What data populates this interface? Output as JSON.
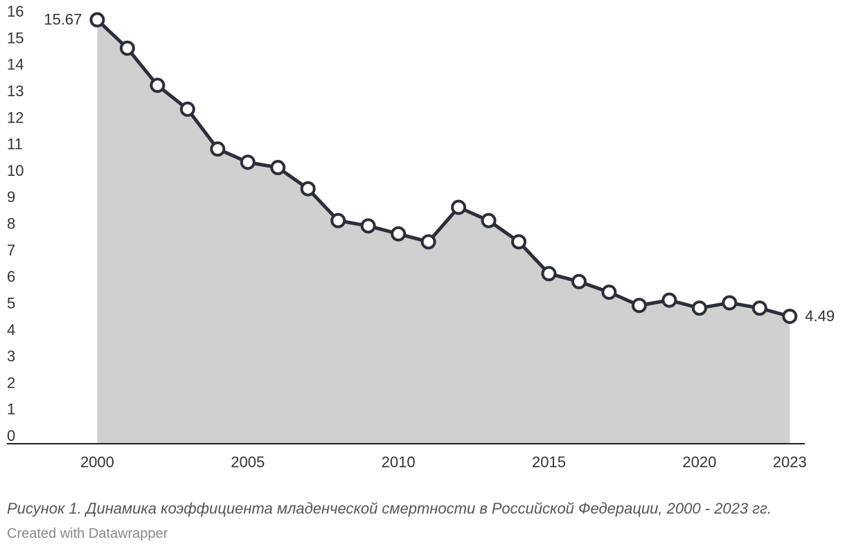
{
  "chart_data": {
    "type": "area",
    "title": "",
    "xlabel": "",
    "ylabel": "",
    "ylim": [
      0,
      16
    ],
    "xlim": [
      1997,
      2023.5
    ],
    "y_ticks": [
      0,
      1,
      2,
      3,
      4,
      5,
      6,
      7,
      8,
      9,
      10,
      11,
      12,
      13,
      14,
      15,
      16
    ],
    "x_ticks": [
      2000,
      2005,
      2010,
      2015,
      2020,
      2023
    ],
    "grid": false,
    "legend": "none",
    "colors": {
      "line": "#2b2f3a",
      "area": "#d0d0d0",
      "marker_fill": "#ffffff"
    },
    "series": [
      {
        "x": [
          2000,
          2001,
          2002,
          2003,
          2004,
          2005,
          2006,
          2007,
          2008,
          2009,
          2010,
          2011,
          2012,
          2013,
          2014,
          2015,
          2016,
          2017,
          2018,
          2019,
          2020,
          2021,
          2022,
          2023
        ],
        "values": [
          15.67,
          14.6,
          13.2,
          12.3,
          10.8,
          10.3,
          10.1,
          9.3,
          8.1,
          7.9,
          7.6,
          7.3,
          8.6,
          8.1,
          7.3,
          6.1,
          5.8,
          5.4,
          4.9,
          5.1,
          4.8,
          5.0,
          4.8,
          4.49
        ]
      }
    ],
    "annotations": [
      {
        "x": 2000,
        "label": "15.67",
        "position": "left"
      },
      {
        "x": 2023,
        "label": "4.49",
        "position": "right"
      }
    ]
  },
  "caption": "Рисунок 1. Динамика коэффициента младенческой смертности в Российской Федерации, 2000 - 2023 гг.",
  "credit": "Created with Datawrapper"
}
